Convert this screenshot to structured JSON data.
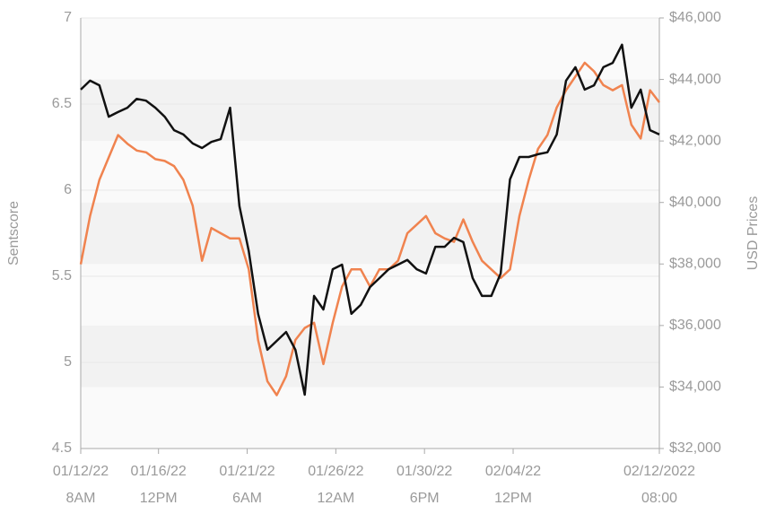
{
  "chart_data": {
    "type": "line",
    "y_label": "Sentscore",
    "y2_label": "USD Prices",
    "grid": true,
    "x": [
      "2022-01-12T08:00",
      "2022-01-12T20:00",
      "2022-01-13T08:00",
      "2022-01-13T20:00",
      "2022-01-14T08:00",
      "2022-01-14T20:00",
      "2022-01-15T08:00",
      "2022-01-15T20:00",
      "2022-01-16T08:00",
      "2022-01-16T20:00",
      "2022-01-17T08:00",
      "2022-01-17T20:00",
      "2022-01-18T08:00",
      "2022-01-18T20:00",
      "2022-01-19T08:00",
      "2022-01-19T20:00",
      "2022-01-20T08:00",
      "2022-01-20T20:00",
      "2022-01-21T08:00",
      "2022-01-21T20:00",
      "2022-01-22T08:00",
      "2022-01-22T20:00",
      "2022-01-23T08:00",
      "2022-01-23T20:00",
      "2022-01-24T08:00",
      "2022-01-24T20:00",
      "2022-01-25T08:00",
      "2022-01-25T20:00",
      "2022-01-26T08:00",
      "2022-01-26T20:00",
      "2022-01-27T08:00",
      "2022-01-27T20:00",
      "2022-01-28T08:00",
      "2022-01-28T20:00",
      "2022-01-29T08:00",
      "2022-01-29T20:00",
      "2022-01-30T08:00",
      "2022-01-30T20:00",
      "2022-01-31T08:00",
      "2022-01-31T20:00",
      "2022-02-01T08:00",
      "2022-02-01T20:00",
      "2022-02-02T08:00",
      "2022-02-02T20:00",
      "2022-02-03T08:00",
      "2022-02-03T20:00",
      "2022-02-04T08:00",
      "2022-02-04T20:00",
      "2022-02-05T08:00",
      "2022-02-05T20:00",
      "2022-02-06T08:00",
      "2022-02-06T20:00",
      "2022-02-07T08:00",
      "2022-02-07T20:00",
      "2022-02-08T08:00",
      "2022-02-08T20:00",
      "2022-02-09T08:00",
      "2022-02-09T20:00",
      "2022-02-10T08:00",
      "2022-02-10T20:00",
      "2022-02-11T08:00",
      "2022-02-11T20:00",
      "2022-02-12T08:00"
    ],
    "xticks": [
      {
        "value": "2022-01-12T08:00",
        "label": [
          "01/12/22",
          "8AM"
        ]
      },
      {
        "value": "2022-01-16T12:00",
        "label": [
          "01/16/22",
          "12PM"
        ]
      },
      {
        "value": "2022-01-21T06:00",
        "label": [
          "01/21/22",
          "6AM"
        ]
      },
      {
        "value": "2022-01-26T00:00",
        "label": [
          "01/26/22",
          "12AM"
        ]
      },
      {
        "value": "2022-01-30T18:00",
        "label": [
          "01/30/22",
          "6PM"
        ]
      },
      {
        "value": "2022-02-04T12:00",
        "label": [
          "02/04/22",
          "12PM"
        ]
      },
      {
        "value": "2022-02-12T08:00",
        "label": [
          "02/12/2022",
          "08:00"
        ]
      }
    ],
    "ylim": [
      4.5,
      7
    ],
    "yticks": [
      4.5,
      5,
      5.5,
      6,
      6.5,
      7
    ],
    "y2lim": [
      32000,
      46000
    ],
    "y2ticks": [
      {
        "value": 32000,
        "label": "$32,000"
      },
      {
        "value": 34000,
        "label": "$34,000"
      },
      {
        "value": 36000,
        "label": "$36,000"
      },
      {
        "value": 38000,
        "label": "$38,000"
      },
      {
        "value": 40000,
        "label": "$40,000"
      },
      {
        "value": 42000,
        "label": "$42,000"
      },
      {
        "value": 44000,
        "label": "$44,000"
      },
      {
        "value": 46000,
        "label": "$46,000"
      }
    ],
    "series": [
      {
        "color": "#f0834f",
        "values": [
          5.57,
          5.85,
          6.06,
          6.19,
          6.32,
          6.27,
          6.23,
          6.22,
          6.18,
          6.17,
          6.14,
          6.06,
          5.91,
          5.59,
          5.78,
          5.75,
          5.72,
          5.72,
          5.54,
          5.13,
          4.89,
          4.81,
          4.92,
          5.13,
          5.2,
          5.23,
          4.99,
          5.23,
          5.44,
          5.54,
          5.54,
          5.44,
          5.54,
          5.54,
          5.59,
          5.75,
          5.8,
          5.85,
          5.75,
          5.72,
          5.7,
          5.83,
          5.7,
          5.59,
          5.54,
          5.49,
          5.54,
          5.85,
          6.06,
          6.24,
          6.32,
          6.48,
          6.58,
          6.66,
          6.74,
          6.69,
          6.61,
          6.58,
          6.61,
          6.38,
          6.3,
          6.58,
          6.51
        ]
      },
      {
        "color": "#111111",
        "axis": "y2",
        "values": [
          43670,
          43960,
          43810,
          42790,
          42940,
          43080,
          43370,
          43310,
          43080,
          42790,
          42350,
          42210,
          41920,
          41770,
          41970,
          42060,
          43080,
          39880,
          38420,
          36380,
          35210,
          35500,
          35790,
          35210,
          33750,
          36960,
          36520,
          37830,
          37980,
          36380,
          36670,
          37250,
          37540,
          37830,
          37980,
          38130,
          37830,
          37690,
          38560,
          38560,
          38850,
          38710,
          37540,
          36960,
          36960,
          37690,
          40750,
          41480,
          41480,
          41570,
          41630,
          42210,
          43960,
          44400,
          43670,
          43810,
          44400,
          44540,
          45130,
          43080,
          43670,
          42350,
          42210
        ]
      }
    ]
  }
}
